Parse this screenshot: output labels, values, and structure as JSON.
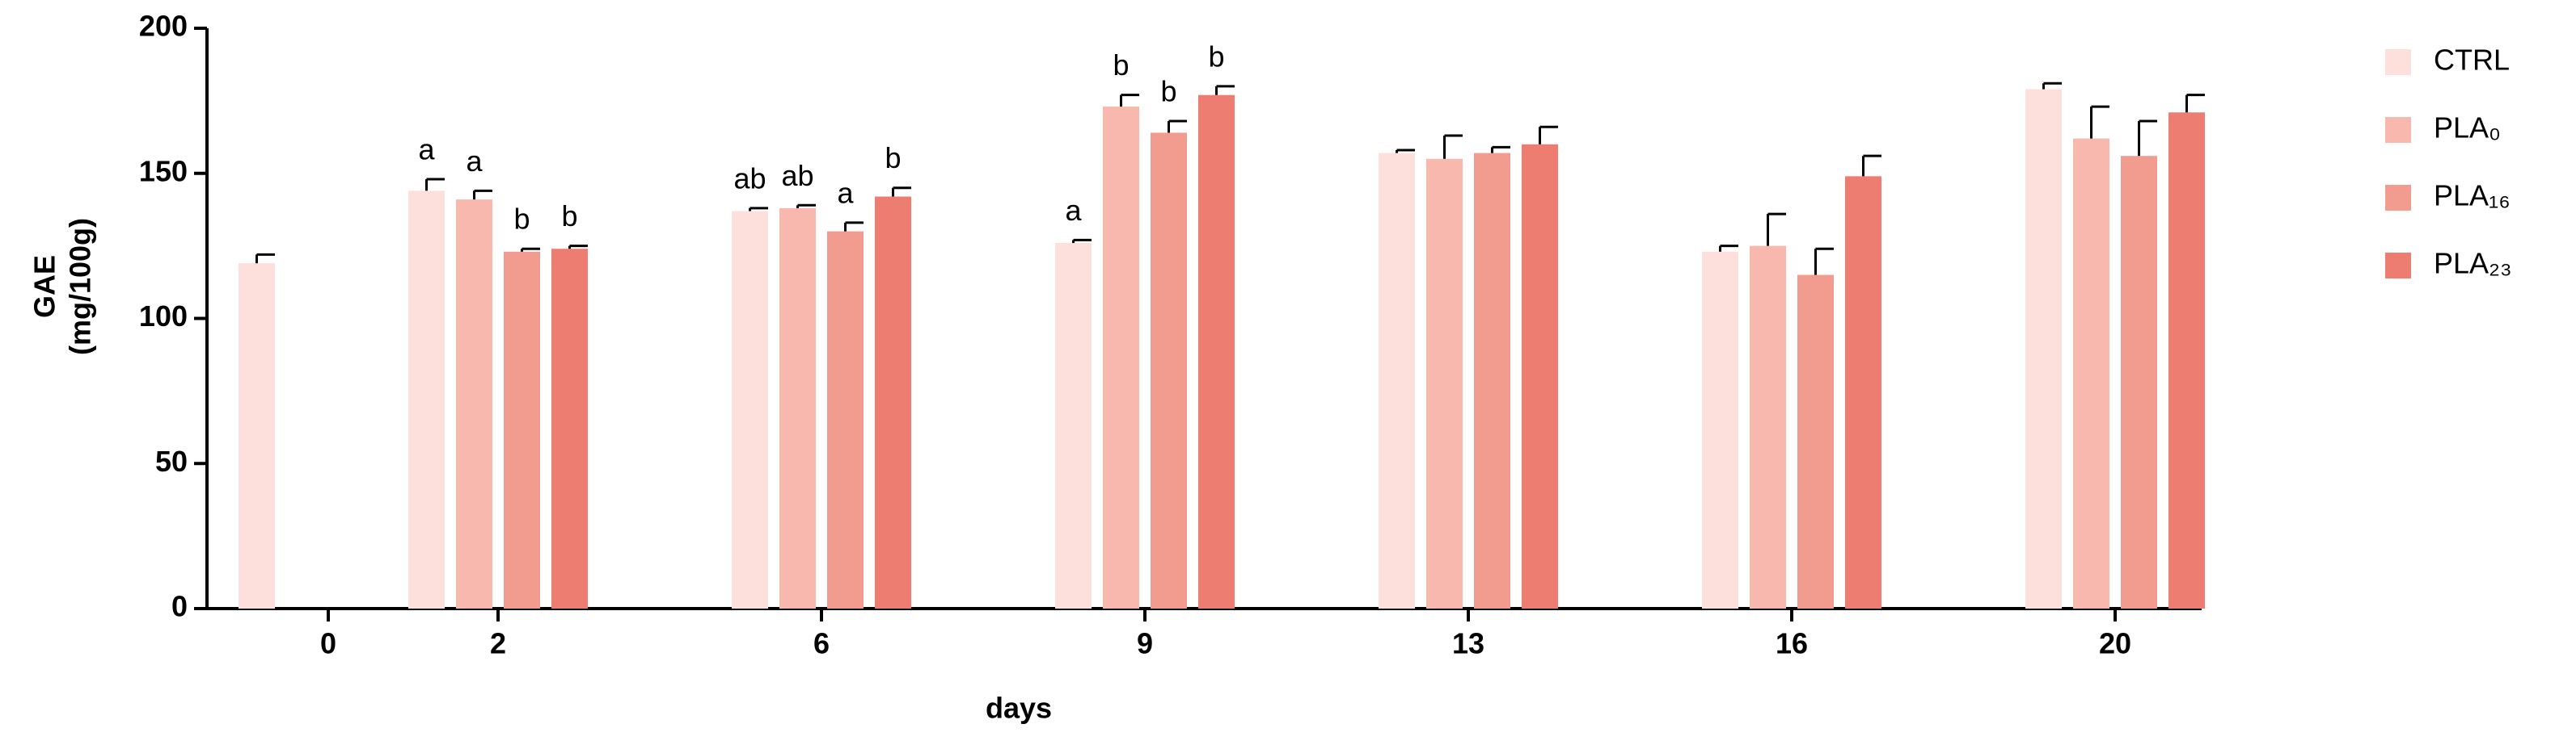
{
  "chart_data": {
    "type": "bar",
    "x_label": "days",
    "y_label": [
      "GAE",
      "(mg/100g)"
    ],
    "categories": [
      "0",
      "2",
      "6",
      "9",
      "13",
      "16",
      "20"
    ],
    "series": [
      {
        "name": "CTRL",
        "color": "#fde0dc",
        "values": [
          119,
          144,
          137,
          126,
          157,
          123,
          179
        ],
        "errors": [
          3,
          4,
          1,
          1,
          1,
          2,
          2
        ],
        "letters": [
          null,
          "a",
          "ab",
          "a",
          null,
          null,
          null
        ]
      },
      {
        "name": "PLA₀",
        "color": "#f9b8ae",
        "values": [
          null,
          141,
          138,
          173,
          155,
          125,
          162
        ],
        "errors": [
          null,
          3,
          1,
          4,
          8,
          11,
          11
        ],
        "letters": [
          null,
          "a",
          "ab",
          "b",
          null,
          null,
          null
        ]
      },
      {
        "name": "PLA₁₆",
        "color": "#f19c8f",
        "values": [
          null,
          123,
          130,
          164,
          157,
          115,
          156
        ],
        "errors": [
          null,
          1,
          3,
          4,
          2,
          9,
          12
        ],
        "letters": [
          null,
          "b",
          "a",
          "b",
          null,
          null,
          null
        ]
      },
      {
        "name": "PLA₂₃",
        "color": "#ec7d70",
        "values": [
          null,
          124,
          142,
          177,
          160,
          149,
          171
        ],
        "errors": [
          null,
          1,
          3,
          3,
          6,
          7,
          6
        ],
        "letters": [
          null,
          "b",
          "b",
          "b",
          null,
          null,
          null
        ]
      }
    ],
    "ylim": [
      0,
      200
    ],
    "yticks": [
      0,
      50,
      100,
      150,
      200
    ]
  }
}
